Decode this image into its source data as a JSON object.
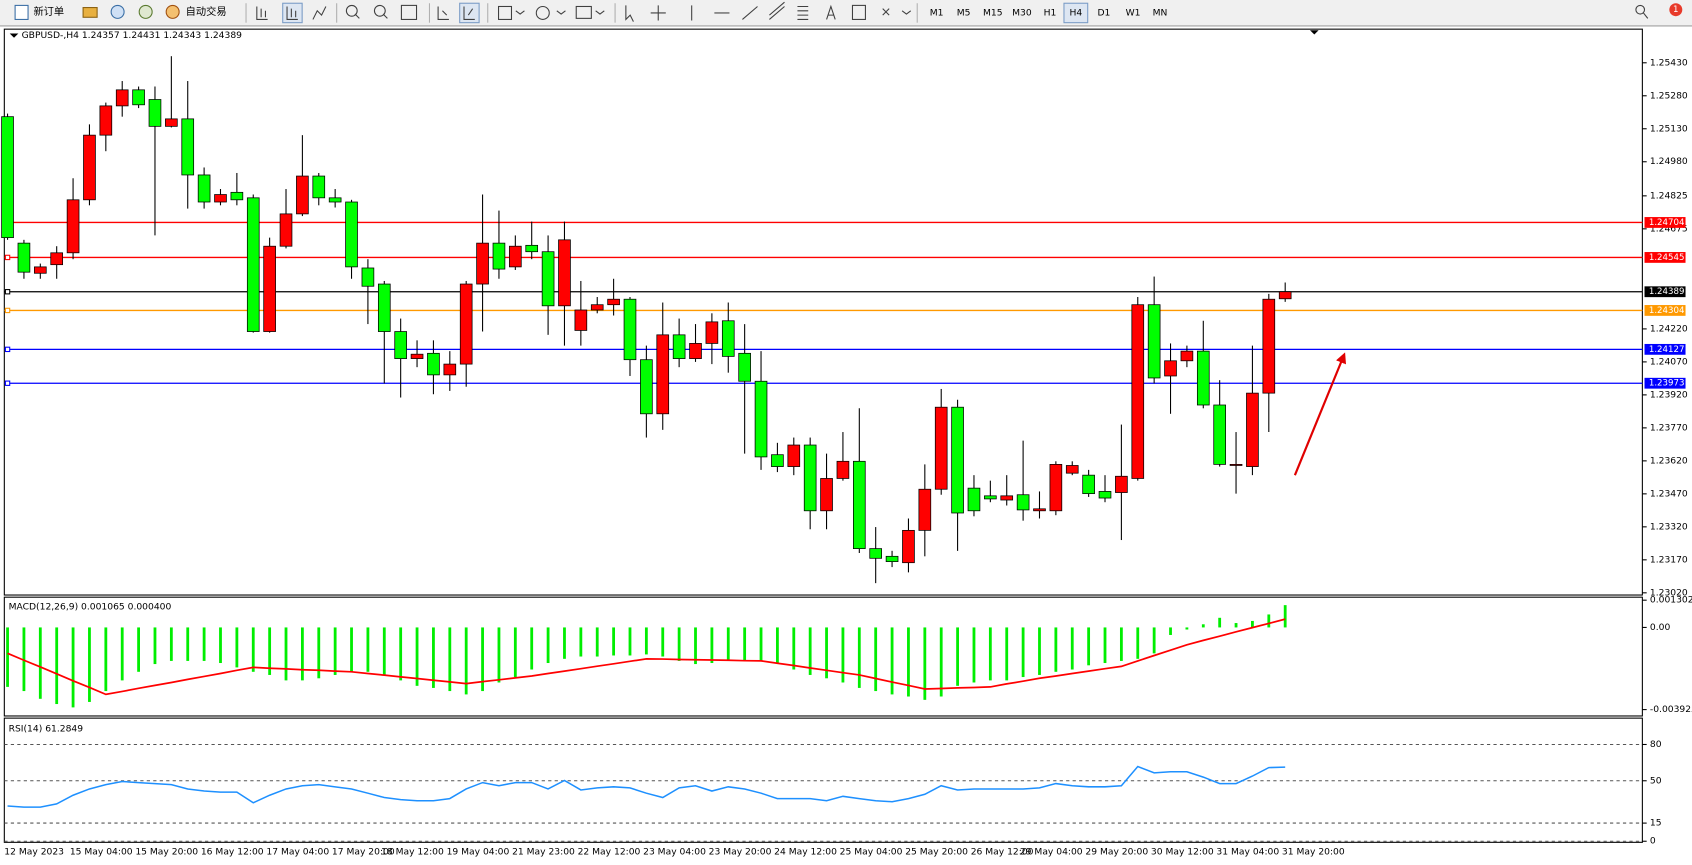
{
  "toolbar": {
    "buttons": [
      "新订单",
      "自动交易"
    ],
    "timeframes": [
      "M1",
      "M5",
      "M15",
      "M30",
      "H1",
      "H4",
      "D1",
      "W1",
      "MN"
    ],
    "active_timeframe": "H4",
    "notification": "1"
  },
  "chart_data": [
    {
      "type": "candlestick",
      "title": "GBPUSD-,H4  1.24357 1.24431 1.24343 1.24389",
      "categories": [
        "12 May 2023",
        null,
        null,
        null,
        "15 May 04:00",
        null,
        null,
        null,
        "15 May 20:00",
        null,
        null,
        null,
        "16 May 12:00",
        null,
        null,
        null,
        "17 May 04:00",
        null,
        null,
        null,
        "17 May 20:00",
        null,
        null,
        "18 May 12:00",
        null,
        null,
        null,
        "19 May 04:00",
        null,
        null,
        null,
        "21 May 23:00",
        null,
        null,
        null,
        "22 May 12:00",
        null,
        null,
        null,
        "23 May 04:00",
        null,
        null,
        null,
        "23 May 20:00",
        null,
        null,
        null,
        "24 May 12:00",
        null,
        null,
        null,
        "25 May 04:00",
        null,
        null,
        null,
        "25 May 20:00",
        null,
        null,
        null,
        "26 May 12:00",
        null,
        null,
        "29 May 04:00",
        null,
        null,
        null,
        "29 May 20:00",
        null,
        null,
        null,
        "30 May 12:00",
        null,
        null,
        null,
        "31 May 04:00",
        null,
        null,
        null,
        "31 May 20:00"
      ],
      "open": [
        1.25185,
        1.2461,
        1.24473,
        1.24512,
        1.24566,
        1.24807,
        1.25101,
        1.25234,
        1.25307,
        1.25263,
        1.25141,
        1.25175,
        1.2492,
        1.24797,
        1.24841,
        1.24816,
        1.24208,
        1.24596,
        1.24743,
        1.24915,
        1.24816,
        1.24797,
        1.24497,
        1.24424,
        1.24208,
        1.24085,
        1.24109,
        1.24011,
        1.2406,
        1.24424,
        1.2461,
        1.24502,
        1.246,
        1.24571,
        1.24325,
        1.24213,
        1.24306,
        1.2433,
        1.24355,
        1.2408,
        1.23834,
        1.24193,
        1.24085,
        1.24154,
        1.24257,
        1.24109,
        1.23982,
        1.23648,
        1.23594,
        1.23692,
        1.23393,
        1.2354,
        1.23618,
        1.23221,
        1.23186,
        1.23157,
        1.23304,
        1.23491,
        1.23864,
        1.23496,
        1.23461,
        1.23442,
        1.23466,
        1.23393,
        1.23393,
        1.23564,
        1.23555,
        1.23481,
        1.23476,
        1.2354,
        1.2433,
        1.24006,
        1.24075,
        1.24119,
        1.23874,
        1.23599,
        1.23594,
        1.23928,
        1.24357
      ],
      "high": [
        1.25199,
        1.24625,
        1.24517,
        1.24596,
        1.24905,
        1.2515,
        1.25249,
        1.25347,
        1.25322,
        1.25322,
        1.2546,
        1.25347,
        1.24954,
        1.24856,
        1.24929,
        1.24831,
        1.24635,
        1.24856,
        1.25101,
        1.24929,
        1.24856,
        1.24807,
        1.24537,
        1.24438,
        1.24267,
        1.24168,
        1.24168,
        1.24119,
        1.24438,
        1.24831,
        1.24758,
        1.24645,
        1.24708,
        1.24645,
        1.24708,
        1.24438,
        1.24365,
        1.24448,
        1.24365,
        1.24144,
        1.2434,
        1.24267,
        1.24242,
        1.24291,
        1.2434,
        1.24242,
        1.24119,
        1.23702,
        1.23726,
        1.23726,
        1.23653,
        1.23751,
        1.23859,
        1.23319,
        1.23211,
        1.23358,
        1.23604,
        1.23947,
        1.23898,
        1.23555,
        1.2353,
        1.23555,
        1.23712,
        1.23481,
        1.23618,
        1.23618,
        1.23579,
        1.23555,
        1.23785,
        1.24365,
        1.24458,
        1.24154,
        1.24144,
        1.24257,
        1.23987,
        1.23751,
        1.24144,
        1.24379,
        1.24431
      ],
      "low": [
        1.24625,
        1.24448,
        1.24448,
        1.24448,
        1.24537,
        1.24782,
        1.25028,
        1.25185,
        1.25224,
        1.24645,
        1.25136,
        1.24767,
        1.24767,
        1.24782,
        1.24782,
        1.24203,
        1.24203,
        1.24586,
        1.24733,
        1.24782,
        1.24772,
        1.24448,
        1.24242,
        1.23972,
        1.23908,
        1.24046,
        1.23923,
        1.23938,
        1.23957,
        1.24208,
        1.24448,
        1.24488,
        1.24537,
        1.24193,
        1.24144,
        1.24144,
        1.24291,
        1.24281,
        1.24006,
        1.23726,
        1.23761,
        1.24046,
        1.2407,
        1.2406,
        1.24021,
        1.23653,
        1.23579,
        1.23569,
        1.23555,
        1.23309,
        1.23309,
        1.2353,
        1.23201,
        1.23064,
        1.23137,
        1.23113,
        1.23186,
        1.23466,
        1.23211,
        1.23368,
        1.23432,
        1.23417,
        1.23348,
        1.23358,
        1.23373,
        1.23555,
        1.23456,
        1.23432,
        1.2326,
        1.2353,
        1.23972,
        1.23834,
        1.24046,
        1.23859,
        1.23594,
        1.23471,
        1.23555,
        1.23751,
        1.24343
      ],
      "close": [
        1.24635,
        1.24478,
        1.24502,
        1.24566,
        1.24807,
        1.25101,
        1.25234,
        1.25307,
        1.25239,
        1.25141,
        1.25175,
        1.2492,
        1.24797,
        1.24831,
        1.24807,
        1.24208,
        1.24596,
        1.24743,
        1.24915,
        1.24816,
        1.24797,
        1.24502,
        1.24414,
        1.24208,
        1.24085,
        1.24105,
        1.24011,
        1.2406,
        1.24424,
        1.2461,
        1.24492,
        1.24596,
        1.24571,
        1.24325,
        1.24625,
        1.24306,
        1.2433,
        1.24355,
        1.2408,
        1.23834,
        1.24193,
        1.24085,
        1.24154,
        1.24252,
        1.24095,
        1.23982,
        1.23638,
        1.23594,
        1.23692,
        1.23393,
        1.2354,
        1.23618,
        1.23221,
        1.23177,
        1.23162,
        1.23304,
        1.23491,
        1.23864,
        1.23383,
        1.23393,
        1.23447,
        1.23461,
        1.23397,
        1.23402,
        1.23604,
        1.23599,
        1.23471,
        1.23451,
        1.2355,
        1.2433,
        1.23997,
        1.24075,
        1.24119,
        1.23874,
        1.23604,
        1.23604,
        1.23928,
        1.24355,
        1.24389
      ],
      "up_color": "#ff0000",
      "down_color": "#00ff00",
      "ylim": [
        1.2301,
        1.25578
      ],
      "yticks": [
        {
          "value": 1.2543,
          "label": "1.25430"
        },
        {
          "value": 1.2528,
          "label": "1.25280"
        },
        {
          "value": 1.2513,
          "label": "1.25130"
        },
        {
          "value": 1.2498,
          "label": "1.24980"
        },
        1.24825,
        1.24675,
        {
          "value": 1.2422,
          "label": "1.24220"
        },
        {
          "value": 1.2407,
          "label": "1.24070"
        },
        {
          "value": 1.2392,
          "label": "1.23920"
        },
        {
          "value": 1.2377,
          "label": "1.23770"
        },
        {
          "value": 1.2362,
          "label": "1.23620"
        },
        {
          "value": 1.2347,
          "label": "1.23470"
        },
        {
          "value": 1.2332,
          "label": "1.23320"
        },
        {
          "value": 1.2317,
          "label": "1.23170"
        },
        {
          "value": 1.2302,
          "label": "1.23020"
        }
      ],
      "levels": [
        {
          "value": 1.24704,
          "color": "#ff0000"
        },
        {
          "value": 1.24545,
          "color": "#ff0000"
        },
        {
          "value": 1.24389,
          "color": "#000000"
        },
        {
          "value": 1.24304,
          "color": "#ff9900"
        },
        {
          "value": 1.24127,
          "color": "#0000ff"
        },
        {
          "value": 1.23973,
          "color": "#0000ff"
        }
      ]
    },
    {
      "type": "macd",
      "title": "MACD(12,26,9) 0.001065 0.000400",
      "series": [
        {
          "style": "bar",
          "color": "#00ee00",
          "values": [
            -0.00284,
            -0.00304,
            -0.00341,
            -0.00366,
            -0.00382,
            -0.00356,
            -0.00304,
            -0.00253,
            -0.00212,
            -0.00175,
            -0.0016,
            -0.0016,
            -0.0016,
            -0.0017,
            -0.00191,
            -0.00212,
            -0.00227,
            -0.00253,
            -0.00253,
            -0.00243,
            -0.00227,
            -0.00212,
            -0.00212,
            -0.00227,
            -0.00253,
            -0.00279,
            -0.00289,
            -0.00304,
            -0.0032,
            -0.00304,
            -0.00263,
            -0.00237,
            -0.00201,
            -0.0017,
            -0.0015,
            -0.00139,
            -0.00139,
            -0.00134,
            -0.00134,
            -0.00129,
            -0.00139,
            -0.0016,
            -0.00175,
            -0.0017,
            -0.0016,
            -0.0016,
            -0.0016,
            -0.0017,
            -0.00201,
            -0.00227,
            -0.00243,
            -0.00263,
            -0.00289,
            -0.00304,
            -0.0032,
            -0.0033,
            -0.00346,
            -0.0033,
            -0.00279,
            -0.00263,
            -0.00253,
            -0.00253,
            -0.00237,
            -0.00227,
            -0.00212,
            -0.00201,
            -0.00181,
            -0.0017,
            -0.0016,
            -0.0015,
            -0.00124,
            -0.00036,
            -0.0001,
            0.00015,
            0.00046,
            0.00021,
            0.00031,
            0.00062,
            0.001065
          ]
        },
        {
          "style": "line",
          "color": "#ff0000",
          "values": [
            -0.00124,
            -0.00157,
            -0.00189,
            -0.00222,
            -0.00255,
            -0.00287,
            -0.0032,
            -0.00306,
            -0.00291,
            -0.00277,
            -0.00263,
            -0.00248,
            -0.00234,
            -0.0022,
            -0.00205,
            -0.00191,
            -0.00195,
            -0.00198,
            -0.00202,
            -0.00205,
            -0.00209,
            -0.00212,
            -0.0022,
            -0.00228,
            -0.00236,
            -0.00244,
            -0.00252,
            -0.0026,
            -0.00268,
            -0.00259,
            -0.0025,
            -0.00241,
            -0.00232,
            -0.0022,
            -0.00209,
            -0.00197,
            -0.00185,
            -0.00174,
            -0.00162,
            -0.0015,
            -0.00151,
            -0.00153,
            -0.00154,
            -0.00156,
            -0.00157,
            -0.00159,
            -0.0016,
            -0.00171,
            -0.00182,
            -0.00194,
            -0.00205,
            -0.00216,
            -0.00227,
            -0.00244,
            -0.00261,
            -0.00277,
            -0.00294,
            -0.00292,
            -0.00289,
            -0.00287,
            -0.00284,
            -0.0027,
            -0.00257,
            -0.00243,
            -0.00232,
            -0.0022,
            -0.00209,
            -0.00197,
            -0.00186,
            -0.0016,
            -0.00134,
            -0.00109,
            -0.00083,
            -0.00062,
            -0.00042,
            -0.00021,
            -1e-05,
            0.00019,
            0.0004
          ]
        }
      ],
      "ylim": [
        -0.00423,
        0.001445
      ],
      "yticks": [
        0.001302,
        {
          "value": 0,
          "label": "0.00"
        },
        -0.003925
      ]
    },
    {
      "type": "line",
      "title": "RSI(14) 61.2849",
      "series": [
        {
          "color": "#1e90ff",
          "values": [
            29.1,
            28.2,
            28.2,
            30.9,
            38.0,
            43.2,
            46.8,
            49.4,
            48.5,
            47.7,
            46.8,
            43.2,
            41.5,
            40.6,
            40.6,
            31.8,
            38.0,
            43.2,
            45.9,
            46.8,
            45.0,
            43.2,
            39.7,
            36.2,
            34.4,
            33.5,
            33.5,
            35.3,
            43.2,
            48.5,
            45.9,
            48.5,
            48.5,
            43.2,
            50.3,
            42.4,
            44.1,
            45.0,
            44.1,
            39.7,
            36.2,
            44.1,
            45.9,
            41.5,
            45.0,
            43.2,
            39.7,
            35.3,
            35.3,
            35.3,
            33.5,
            37.1,
            35.3,
            33.5,
            32.7,
            35.3,
            38.8,
            45.9,
            42.4,
            43.2,
            43.2,
            43.2,
            43.2,
            44.1,
            47.7,
            45.9,
            45.0,
            45.0,
            45.9,
            61.8,
            56.5,
            57.4,
            57.4,
            53.0,
            47.7,
            47.7,
            53.8,
            60.9,
            61.2849
          ]
        }
      ],
      "ylim": [
        0,
        100
      ],
      "yticks": [
        0,
        15,
        50,
        80
      ],
      "grid": "dashed"
    }
  ]
}
